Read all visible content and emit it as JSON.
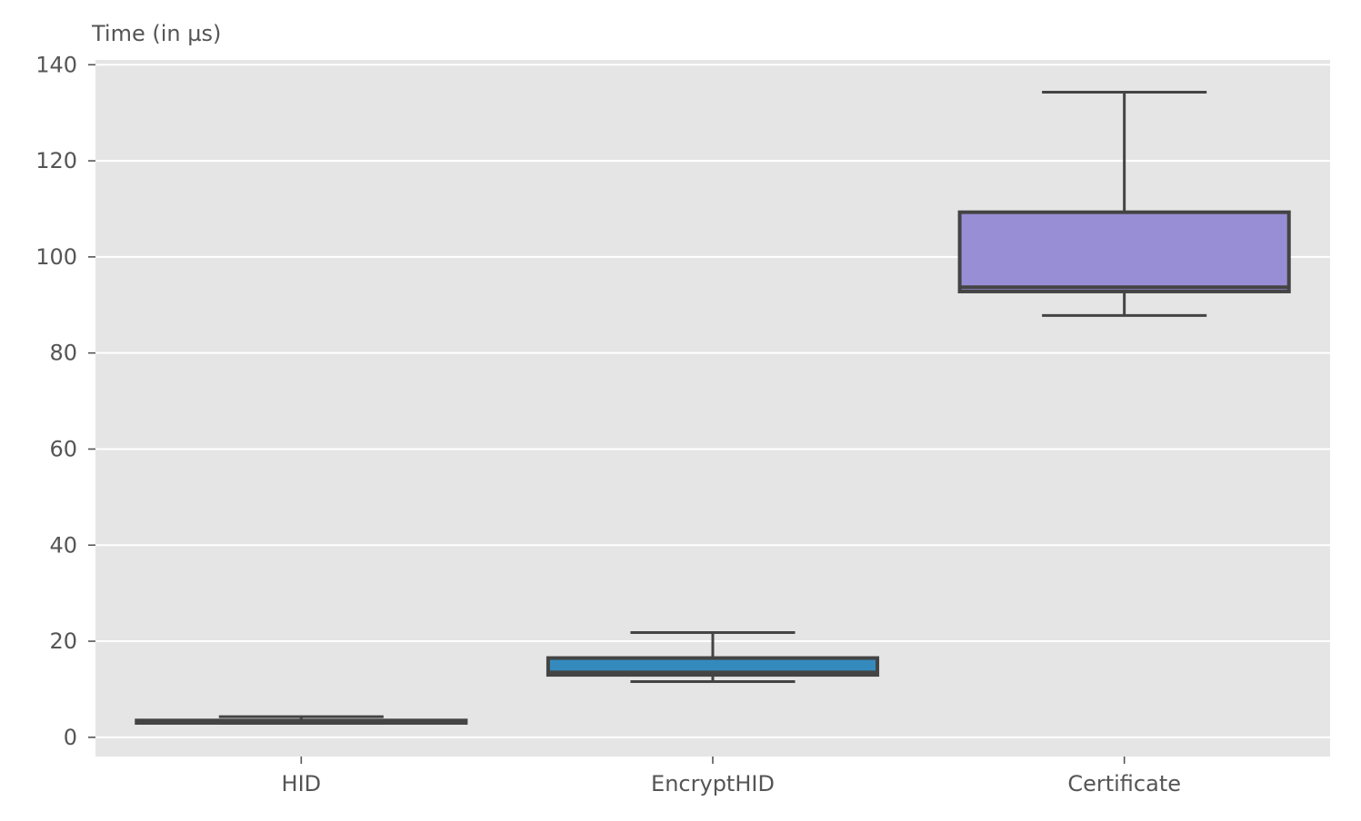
{
  "chart_data": {
    "type": "box",
    "title": "",
    "xlabel": "",
    "ylabel": "Time (in µs)",
    "ylim": [
      -4,
      141
    ],
    "yticks": [
      0,
      20,
      40,
      60,
      80,
      100,
      120,
      140
    ],
    "grid": true,
    "categories": [
      "HID",
      "EncryptHID",
      "Certificate"
    ],
    "boxes": [
      {
        "name": "HID",
        "whisker_low": 2.9,
        "q1": 3.0,
        "median": 3.2,
        "q3": 3.5,
        "whisker_high": 4.3,
        "color": "#e24a33"
      },
      {
        "name": "EncryptHID",
        "whisker_low": 11.6,
        "q1": 13.0,
        "median": 13.5,
        "q3": 16.5,
        "whisker_high": 21.8,
        "color": "#348abd"
      },
      {
        "name": "Certificate",
        "whisker_low": 87.8,
        "q1": 92.8,
        "median": 93.7,
        "q3": 109.3,
        "whisker_high": 134.3,
        "color": "#988ed5"
      }
    ],
    "colors": {
      "plot_background": "#e5e5e5",
      "grid": "#ffffff",
      "line": "#444444",
      "text": "#555555"
    }
  }
}
